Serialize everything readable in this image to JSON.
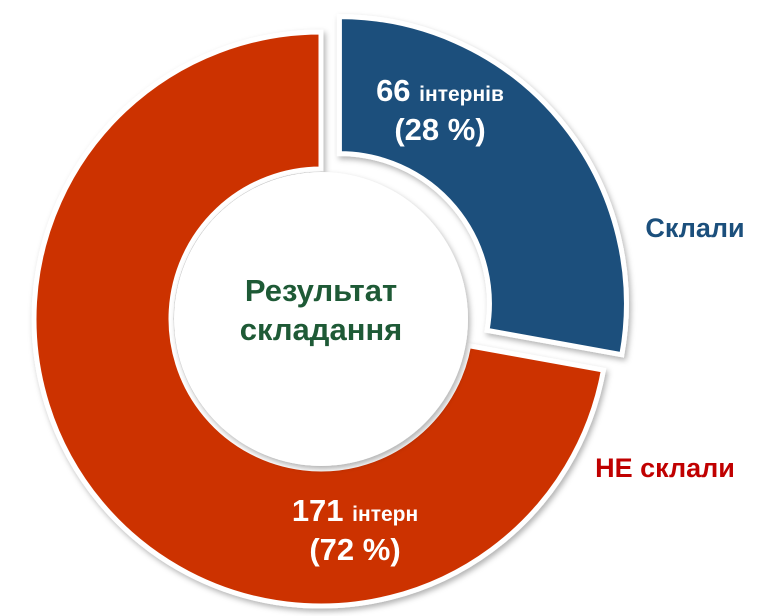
{
  "chart_data": {
    "type": "donut",
    "center_label": "Результат складання",
    "categories": [
      "Склали",
      "НЕ склали"
    ],
    "values": [
      66,
      171
    ],
    "units": [
      "інтернів",
      "інтерн"
    ],
    "percents": [
      28,
      72
    ],
    "percent_labels": [
      "(28 %)",
      "(72 %)"
    ],
    "colors": [
      "#1b4f7c",
      "#cc3300"
    ],
    "label_colors": [
      "#1b4f7c",
      "#c00000"
    ],
    "explode": [
      true,
      false
    ]
  }
}
